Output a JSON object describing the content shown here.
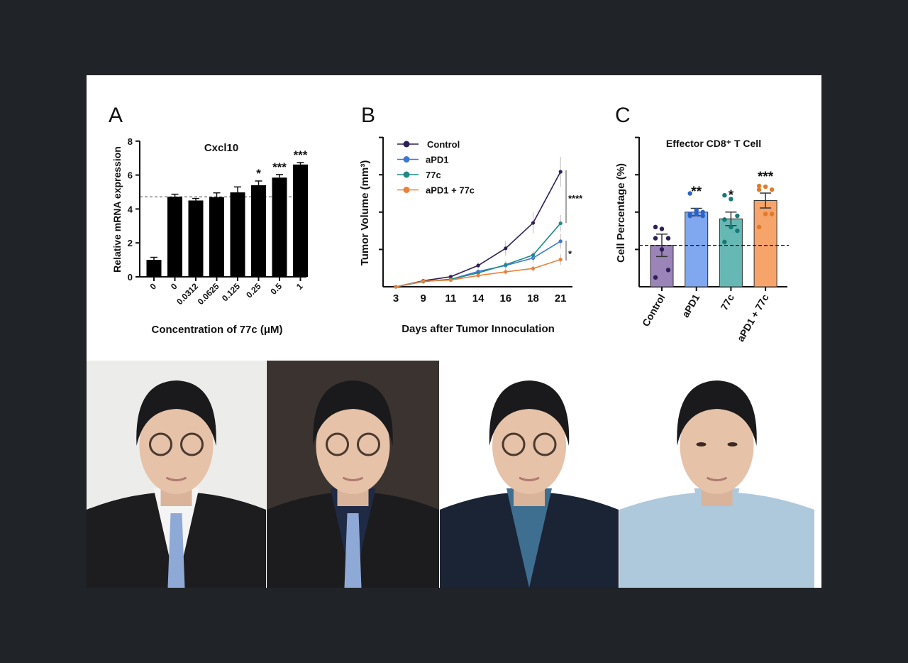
{
  "colors": {
    "background": "#202327",
    "panel": "#ffffff"
  },
  "chart_data": [
    {
      "type": "bar",
      "panel_label": "A",
      "title": "Cxcl10",
      "xlabel": "Concentration of 77c (μM)",
      "ylabel": "Relative mRNA expression",
      "ylim": [
        0,
        8
      ],
      "yticks": [
        "0",
        "2",
        "4",
        "6",
        "8"
      ],
      "categories": [
        "0",
        "0",
        "0.0312",
        "0.0625",
        "0.125",
        "0.25",
        "0.5",
        "1"
      ],
      "values": [
        1.0,
        4.72,
        4.5,
        4.7,
        4.98,
        5.4,
        5.85,
        6.62
      ],
      "errors": [
        0.15,
        0.15,
        0.12,
        0.25,
        0.32,
        0.25,
        0.18,
        0.12
      ],
      "significance": [
        "",
        "",
        "",
        "",
        "",
        "*",
        "***",
        "***"
      ],
      "reference_line": 4.72,
      "bar_color": "#000000"
    },
    {
      "type": "line",
      "panel_label": "B",
      "xlabel": "Days after Tumor Innoculation",
      "ylabel": "Tumor Volume (mm³)",
      "categories": [
        "3",
        "9",
        "11",
        "14",
        "16",
        "18",
        "21"
      ],
      "ylim": [
        0,
        4
      ],
      "legend": "top-left",
      "series": [
        {
          "name": "Control",
          "color": "#2e1f57",
          "values": [
            0,
            0.16,
            0.27,
            0.57,
            1.03,
            1.71,
            3.08
          ],
          "errors": [
            0,
            0.02,
            0.03,
            0.08,
            0.2,
            0.28,
            0.4
          ]
        },
        {
          "name": "aPD1",
          "color": "#3a78d8",
          "values": [
            0,
            0.14,
            0.2,
            0.41,
            0.57,
            0.77,
            1.22
          ],
          "errors": [
            0,
            0.02,
            0.03,
            0.06,
            0.1,
            0.12,
            0.2
          ]
        },
        {
          "name": "77c",
          "color": "#1f8a86",
          "values": [
            0,
            0.14,
            0.2,
            0.37,
            0.59,
            0.85,
            1.7
          ],
          "errors": [
            0,
            0.02,
            0.03,
            0.06,
            0.1,
            0.1,
            0.22
          ]
        },
        {
          "name": "aPD1 + 77c",
          "color": "#e8823a",
          "values": [
            0,
            0.15,
            0.18,
            0.3,
            0.4,
            0.49,
            0.73
          ],
          "errors": [
            0,
            0.02,
            0.03,
            0.05,
            0.07,
            0.08,
            0.14
          ]
        }
      ],
      "significance": [
        {
          "label": "****"
        },
        {
          "label": "*"
        }
      ]
    },
    {
      "type": "bar",
      "panel_label": "C",
      "title": "Effector CD8⁺ T Cell",
      "ylabel": "Cell Percentage (%)",
      "categories": [
        "Control",
        "aPD1",
        "77c",
        "aPD1 + 77c"
      ],
      "ylim": [
        0,
        4
      ],
      "values": [
        1.11,
        2.0,
        1.82,
        2.31
      ],
      "errors": [
        0.3,
        0.1,
        0.18,
        0.2
      ],
      "points": [
        [
          1.6,
          1.55,
          1.3,
          1.3,
          1.0,
          0.45,
          0.25
        ],
        [
          2.5,
          2.05,
          2.0,
          1.95,
          1.95,
          1.9,
          1.9
        ],
        [
          2.45,
          2.35,
          1.9,
          1.8,
          1.6,
          1.5,
          1.2
        ],
        [
          2.7,
          2.68,
          2.6,
          2.6,
          1.95,
          1.95,
          1.6
        ]
      ],
      "colors": [
        "#9a84b8",
        "#7fa8f0",
        "#66b8b4",
        "#f6a46a"
      ],
      "point_colors": [
        "#2e1f57",
        "#2a62c8",
        "#137a74",
        "#e07a2a"
      ],
      "significance": [
        "",
        "**",
        "*",
        "***"
      ],
      "reference_line": 1.11
    }
  ],
  "photos": [
    {
      "bg": "#ececea",
      "suit": "#1d1d20",
      "shirt": "#f4f4f4",
      "tie": "#8fa9d6",
      "glasses": true
    },
    {
      "bg": "#3b3330",
      "suit": "#1c1c1e",
      "shirt": "#1f2a44",
      "tie": "#8fa9d6",
      "glasses": true
    },
    {
      "bg": "#ffffff",
      "suit": "#1b2434",
      "shirt": "#3f6f90",
      "tie": "",
      "glasses": true
    },
    {
      "bg": "#ffffff",
      "suit": "#aec8dc",
      "shirt": "#aec8dc",
      "tie": "",
      "glasses": false
    }
  ]
}
